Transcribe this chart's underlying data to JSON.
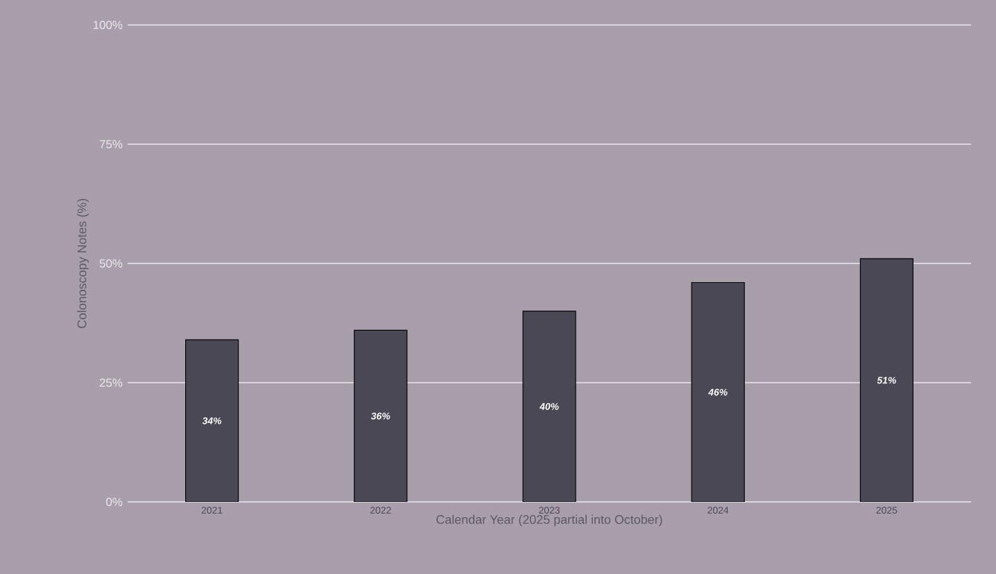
{
  "chart_data": {
    "type": "bar",
    "xlabel": "Calendar Year (2025 partial into October)",
    "ylabel": "Colonoscopy Notes (%)",
    "categories": [
      "2021",
      "2022",
      "2023",
      "2024",
      "2025"
    ],
    "values": [
      34,
      36,
      40,
      46,
      51
    ],
    "value_labels": [
      "34%",
      "36%",
      "40%",
      "46%",
      "51%"
    ],
    "color": "#4a4854",
    "ylim": [
      0,
      100
    ],
    "yticks": [
      {
        "value": 0,
        "label": "0%"
      },
      {
        "value": 25,
        "label": "25%"
      },
      {
        "value": 50,
        "label": "50%"
      },
      {
        "value": 75,
        "label": "75%"
      },
      {
        "value": 100,
        "label": "100%"
      }
    ],
    "grid": "y"
  }
}
